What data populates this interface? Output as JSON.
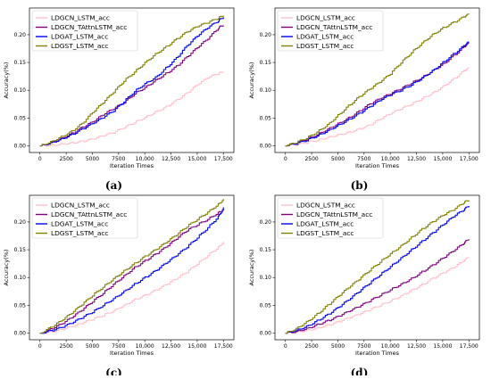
{
  "colors": {
    "LDGCN_LSTM_acc": "#ffc0cb",
    "LDGCN_TAttnLSTM_acc": "#800080",
    "LDGAT_LSTM_acc": "#0000ff",
    "LDGST_LSTM_acc": "#808000"
  },
  "chart_data": [
    {
      "type": "line",
      "panel_label": "(a)",
      "xlabel": "Iteration Times",
      "ylabel": "Accuracy(%)",
      "xlim": [
        -1000,
        18500
      ],
      "ylim": [
        -0.012,
        0.248
      ],
      "xticks": [
        "0",
        "2500",
        "5000",
        "7500",
        "10,000",
        "12,500",
        "15,000",
        "17,500"
      ],
      "yticks": [
        "0.00",
        "0.05",
        "0.10",
        "0.15",
        "0.20"
      ],
      "legend": "top-left",
      "series": [
        {
          "name": "LDGCN_LSTM_acc",
          "x": [
            0,
            1000,
            2000,
            3000,
            4000,
            5000,
            6000,
            7000,
            8000,
            9000,
            10000,
            11000,
            12000,
            13000,
            14000,
            15000,
            16000,
            17000,
            17500
          ],
          "y": [
            0,
            0.001,
            0.003,
            0.005,
            0.008,
            0.012,
            0.018,
            0.024,
            0.033,
            0.042,
            0.051,
            0.061,
            0.07,
            0.082,
            0.095,
            0.11,
            0.123,
            0.13,
            0.134
          ]
        },
        {
          "name": "LDGCN_TAttnLSTM_acc",
          "x": [
            0,
            1000,
            2000,
            3000,
            4000,
            5000,
            6000,
            7000,
            8000,
            9000,
            10000,
            11000,
            12000,
            13000,
            14000,
            15000,
            16000,
            17000,
            17500
          ],
          "y": [
            0,
            0.006,
            0.013,
            0.022,
            0.033,
            0.043,
            0.056,
            0.067,
            0.078,
            0.094,
            0.105,
            0.118,
            0.13,
            0.143,
            0.16,
            0.177,
            0.193,
            0.212,
            0.218
          ]
        },
        {
          "name": "LDGAT_LSTM_acc",
          "x": [
            0,
            1000,
            2000,
            3000,
            4000,
            5000,
            6000,
            7000,
            8000,
            9000,
            10000,
            11000,
            12000,
            13000,
            14000,
            15000,
            16000,
            17000,
            17500
          ],
          "y": [
            0,
            0.005,
            0.012,
            0.02,
            0.03,
            0.04,
            0.051,
            0.063,
            0.08,
            0.098,
            0.112,
            0.123,
            0.14,
            0.158,
            0.18,
            0.198,
            0.213,
            0.225,
            0.232
          ]
        },
        {
          "name": "LDGST_LSTM_acc",
          "x": [
            0,
            1000,
            2000,
            3000,
            4000,
            5000,
            6000,
            7000,
            8000,
            9000,
            10000,
            11000,
            12000,
            13000,
            14000,
            15000,
            16000,
            17000,
            17500
          ],
          "y": [
            0,
            0.007,
            0.016,
            0.026,
            0.04,
            0.06,
            0.078,
            0.097,
            0.117,
            0.133,
            0.15,
            0.165,
            0.178,
            0.192,
            0.205,
            0.215,
            0.222,
            0.23,
            0.235
          ]
        }
      ]
    },
    {
      "type": "line",
      "panel_label": "(b)",
      "xlabel": "Iteration Times",
      "ylabel": "Accuracy(%)",
      "xlim": [
        -1000,
        18500
      ],
      "ylim": [
        -0.012,
        0.248
      ],
      "xticks": [
        "0",
        "2500",
        "5000",
        "7500",
        "10,000",
        "12,500",
        "15,000",
        "17,500"
      ],
      "yticks": [
        "0.00",
        "0.05",
        "0.10",
        "0.15",
        "0.20"
      ],
      "legend": "top-left",
      "series": [
        {
          "name": "LDGCN_LSTM_acc",
          "x": [
            0,
            1000,
            2000,
            3000,
            4000,
            5000,
            6000,
            7000,
            8000,
            9000,
            10000,
            11000,
            12000,
            13000,
            14000,
            15000,
            16000,
            17000,
            17500
          ],
          "y": [
            0,
            0.002,
            0.006,
            0.01,
            0.015,
            0.02,
            0.024,
            0.03,
            0.037,
            0.048,
            0.058,
            0.067,
            0.075,
            0.085,
            0.095,
            0.107,
            0.12,
            0.135,
            0.14
          ]
        },
        {
          "name": "LDGCN_TAttnLSTM_acc",
          "x": [
            0,
            1000,
            2000,
            3000,
            4000,
            5000,
            6000,
            7000,
            8000,
            9000,
            10000,
            11000,
            12000,
            13000,
            14000,
            15000,
            16000,
            17000,
            17500
          ],
          "y": [
            0,
            0.005,
            0.012,
            0.02,
            0.03,
            0.04,
            0.05,
            0.062,
            0.075,
            0.085,
            0.094,
            0.103,
            0.113,
            0.123,
            0.135,
            0.147,
            0.162,
            0.178,
            0.185
          ]
        },
        {
          "name": "LDGAT_LSTM_acc",
          "x": [
            0,
            1000,
            2000,
            3000,
            4000,
            5000,
            6000,
            7000,
            8000,
            9000,
            10000,
            11000,
            12000,
            13000,
            14000,
            15000,
            16000,
            17000,
            17500
          ],
          "y": [
            0,
            0.004,
            0.01,
            0.018,
            0.027,
            0.037,
            0.047,
            0.058,
            0.07,
            0.082,
            0.092,
            0.1,
            0.11,
            0.122,
            0.135,
            0.15,
            0.165,
            0.18,
            0.187
          ]
        },
        {
          "name": "LDGST_LSTM_acc",
          "x": [
            0,
            1000,
            2000,
            3000,
            4000,
            5000,
            6000,
            7000,
            8000,
            9000,
            10000,
            11000,
            12000,
            13000,
            14000,
            15000,
            16000,
            17000,
            17500
          ],
          "y": [
            0,
            0.006,
            0.014,
            0.025,
            0.038,
            0.055,
            0.072,
            0.088,
            0.102,
            0.115,
            0.13,
            0.15,
            0.168,
            0.185,
            0.2,
            0.212,
            0.222,
            0.232,
            0.237
          ]
        }
      ]
    },
    {
      "type": "line",
      "panel_label": "(c)",
      "xlabel": "Iteration Times",
      "ylabel": "Accuracy(%)",
      "xlim": [
        -1000,
        18500
      ],
      "ylim": [
        -0.012,
        0.248
      ],
      "xticks": [
        "0",
        "2500",
        "5000",
        "7500",
        "10,000",
        "12,500",
        "15,000",
        "17,500"
      ],
      "yticks": [
        "0.00",
        "0.05",
        "0.10",
        "0.15",
        "0.20"
      ],
      "legend": "top-left",
      "series": [
        {
          "name": "LDGCN_LSTM_acc",
          "x": [
            0,
            1000,
            2000,
            3000,
            4000,
            5000,
            6000,
            7000,
            8000,
            9000,
            10000,
            11000,
            12000,
            13000,
            14000,
            15000,
            16000,
            17000,
            17500
          ],
          "y": [
            0,
            0.002,
            0.006,
            0.012,
            0.018,
            0.025,
            0.032,
            0.04,
            0.05,
            0.06,
            0.068,
            0.077,
            0.087,
            0.098,
            0.11,
            0.125,
            0.14,
            0.155,
            0.163
          ]
        },
        {
          "name": "LDGCN_TAttnLSTM_acc",
          "x": [
            0,
            1000,
            2000,
            3000,
            4000,
            5000,
            6000,
            7000,
            8000,
            9000,
            10000,
            11000,
            12000,
            13000,
            14000,
            15000,
            16000,
            17000,
            17500
          ],
          "y": [
            0,
            0.007,
            0.016,
            0.028,
            0.042,
            0.057,
            0.072,
            0.088,
            0.103,
            0.118,
            0.13,
            0.142,
            0.155,
            0.17,
            0.185,
            0.195,
            0.205,
            0.217,
            0.222
          ]
        },
        {
          "name": "LDGAT_LSTM_acc",
          "x": [
            0,
            1000,
            2000,
            3000,
            4000,
            5000,
            6000,
            7000,
            8000,
            9000,
            10000,
            11000,
            12000,
            13000,
            14000,
            15000,
            16000,
            17000,
            17500
          ],
          "y": [
            0,
            0.004,
            0.01,
            0.018,
            0.028,
            0.038,
            0.05,
            0.062,
            0.075,
            0.088,
            0.1,
            0.112,
            0.126,
            0.14,
            0.155,
            0.172,
            0.19,
            0.21,
            0.225
          ]
        },
        {
          "name": "LDGST_LSTM_acc",
          "x": [
            0,
            1000,
            2000,
            3000,
            4000,
            5000,
            6000,
            7000,
            8000,
            9000,
            10000,
            11000,
            12000,
            13000,
            14000,
            15000,
            16000,
            17000,
            17500
          ],
          "y": [
            0,
            0.01,
            0.022,
            0.036,
            0.052,
            0.068,
            0.083,
            0.098,
            0.112,
            0.125,
            0.138,
            0.15,
            0.163,
            0.177,
            0.192,
            0.205,
            0.218,
            0.232,
            0.24
          ]
        }
      ]
    },
    {
      "type": "line",
      "panel_label": "(d)",
      "xlabel": "Iteration Times",
      "ylabel": "Accuracy(%)",
      "xlim": [
        -1000,
        18500
      ],
      "ylim": [
        -0.012,
        0.248
      ],
      "xticks": [
        "0",
        "2500",
        "5000",
        "7500",
        "10,000",
        "12,500",
        "15,000",
        "17,500"
      ],
      "yticks": [
        "0.00",
        "0.05",
        "0.10",
        "0.15",
        "0.20"
      ],
      "legend": "top-left",
      "series": [
        {
          "name": "LDGCN_LSTM_acc",
          "x": [
            0,
            1000,
            2000,
            3000,
            4000,
            5000,
            6000,
            7000,
            8000,
            9000,
            10000,
            11000,
            12000,
            13000,
            14000,
            15000,
            16000,
            17000,
            17500
          ],
          "y": [
            0,
            0.002,
            0.005,
            0.009,
            0.014,
            0.02,
            0.027,
            0.034,
            0.042,
            0.05,
            0.058,
            0.067,
            0.077,
            0.087,
            0.098,
            0.108,
            0.118,
            0.13,
            0.138
          ]
        },
        {
          "name": "LDGCN_TAttnLSTM_acc",
          "x": [
            0,
            1000,
            2000,
            3000,
            4000,
            5000,
            6000,
            7000,
            8000,
            9000,
            10000,
            11000,
            12000,
            13000,
            14000,
            15000,
            16000,
            17000,
            17500
          ],
          "y": [
            0,
            0.003,
            0.008,
            0.015,
            0.022,
            0.03,
            0.039,
            0.048,
            0.058,
            0.068,
            0.078,
            0.088,
            0.098,
            0.11,
            0.122,
            0.135,
            0.148,
            0.162,
            0.17
          ]
        },
        {
          "name": "LDGAT_LSTM_acc",
          "x": [
            0,
            1000,
            2000,
            3000,
            4000,
            5000,
            6000,
            7000,
            8000,
            9000,
            10000,
            11000,
            12000,
            13000,
            14000,
            15000,
            16000,
            17000,
            17500
          ],
          "y": [
            0,
            0.005,
            0.012,
            0.022,
            0.033,
            0.046,
            0.06,
            0.075,
            0.09,
            0.105,
            0.12,
            0.135,
            0.15,
            0.165,
            0.18,
            0.195,
            0.21,
            0.222,
            0.23
          ]
        },
        {
          "name": "LDGST_LSTM_acc",
          "x": [
            0,
            1000,
            2000,
            3000,
            4000,
            5000,
            6000,
            7000,
            8000,
            9000,
            10000,
            11000,
            12000,
            13000,
            14000,
            15000,
            16000,
            17000,
            17500
          ],
          "y": [
            0,
            0.008,
            0.02,
            0.034,
            0.05,
            0.066,
            0.082,
            0.097,
            0.113,
            0.128,
            0.143,
            0.157,
            0.172,
            0.187,
            0.2,
            0.212,
            0.222,
            0.235,
            0.24
          ]
        }
      ]
    }
  ]
}
